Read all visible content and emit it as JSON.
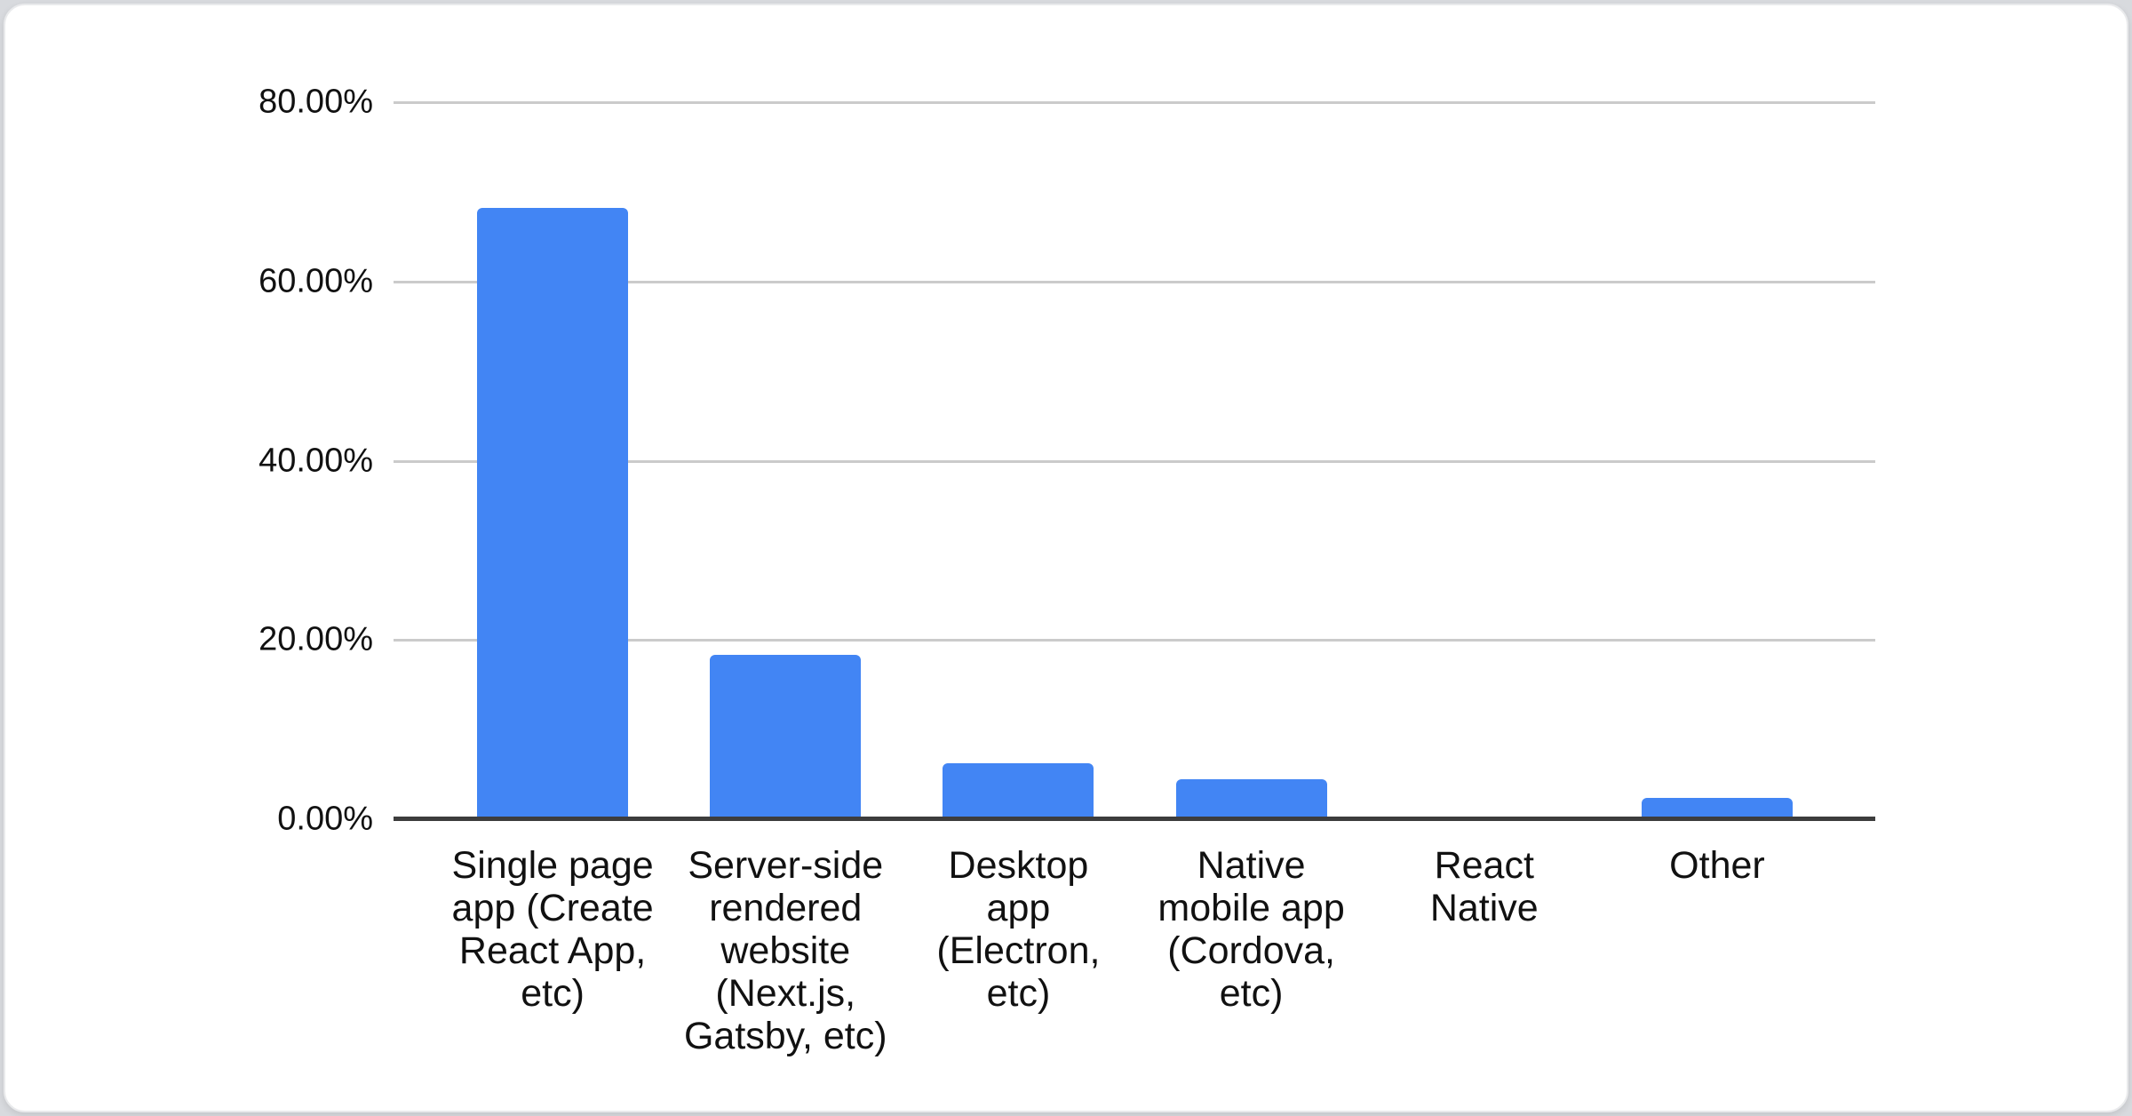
{
  "page": {
    "background_color": "#d8dade",
    "card_color": "#ffffff"
  },
  "chart_data": {
    "type": "bar",
    "title": "",
    "xlabel": "",
    "ylabel": "",
    "categories": [
      "Single page app (Create React App, etc)",
      "Server-side rendered website (Next.js, Gatsby, etc)",
      "Desktop app (Electron, etc)",
      "Native mobile app (Cordova, etc)",
      "React Native",
      "Other"
    ],
    "display_labels": [
      "Single page\napp (Create\nReact App,\netc)",
      "Server-side\nrendered\nwebsite\n(Next.js,\nGatsby, etc)",
      "Desktop\napp\n(Electron,\netc)",
      "Native\nmobile app\n(Cordova,\netc)",
      "React\nNative",
      "Other"
    ],
    "values": [
      68.2,
      18.3,
      6.2,
      4.5,
      0,
      2.4
    ],
    "unit": "%",
    "ylim": [
      0,
      80
    ],
    "ytick_labels": [
      "80.00%",
      "60.00%",
      "40.00%",
      "20.00%",
      "0.00%"
    ],
    "grid": true,
    "legend": "none",
    "bar_color": "#4285f4",
    "gridline_color": "#cbcbcb",
    "axis_line_color": "#3d3d3d",
    "text_color": "#111111"
  }
}
